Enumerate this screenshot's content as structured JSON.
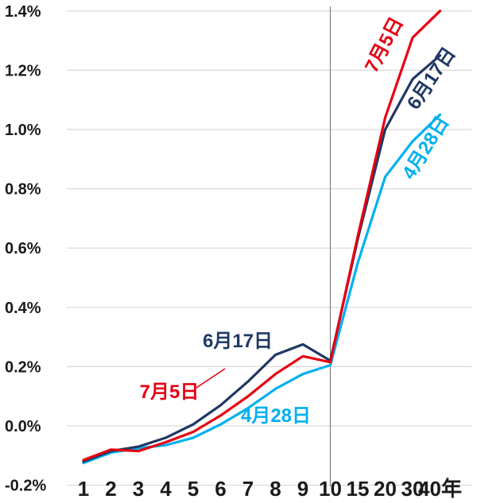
{
  "chart_data": {
    "type": "line",
    "title": "",
    "x_categories": [
      "1",
      "2",
      "3",
      "4",
      "5",
      "6",
      "7",
      "8",
      "9",
      "10",
      "15",
      "20",
      "30",
      "40年"
    ],
    "y_ticks": [
      "1.4%",
      "1.2%",
      "1.0%",
      "0.8%",
      "0.6%",
      "0.4%",
      "0.2%",
      "0.0%",
      "-0.2%"
    ],
    "ylim": [
      -0.2,
      1.4
    ],
    "grid": "horizontal",
    "divider_at_category": "10",
    "series": [
      {
        "name": "7月5日",
        "color": "#e60012",
        "values": [
          -0.115,
          -0.08,
          -0.085,
          -0.055,
          -0.02,
          0.035,
          0.1,
          0.175,
          0.235,
          0.215,
          0.64,
          1.04,
          1.31,
          1.4
        ]
      },
      {
        "name": "6月17日",
        "color": "#1f3864",
        "values": [
          -0.12,
          -0.085,
          -0.07,
          -0.04,
          0.005,
          0.07,
          0.15,
          0.24,
          0.275,
          0.22,
          0.63,
          1.0,
          1.17,
          1.25
        ]
      },
      {
        "name": "4月28日",
        "color": "#00b0f0",
        "values": [
          -0.125,
          -0.09,
          -0.075,
          -0.065,
          -0.04,
          0.005,
          0.06,
          0.125,
          0.175,
          0.205,
          0.55,
          0.84,
          0.96,
          1.05
        ]
      }
    ],
    "labels": [
      {
        "text": "7月5日",
        "series": 0,
        "placement": "curve-mid"
      },
      {
        "text": "6月17日",
        "series": 1,
        "placement": "curve-mid"
      },
      {
        "text": "4月28日",
        "series": 2,
        "placement": "curve-mid"
      },
      {
        "text": "7月5日",
        "series": 0,
        "placement": "curve-end"
      },
      {
        "text": "6月17日",
        "series": 1,
        "placement": "curve-end"
      },
      {
        "text": "4月28日",
        "series": 2,
        "placement": "curve-end"
      }
    ]
  },
  "colors": {
    "grid": "#d9d9d9",
    "divider": "#7f7f7f",
    "axis_text": "#1a1a1a",
    "background": "#ffffff"
  }
}
